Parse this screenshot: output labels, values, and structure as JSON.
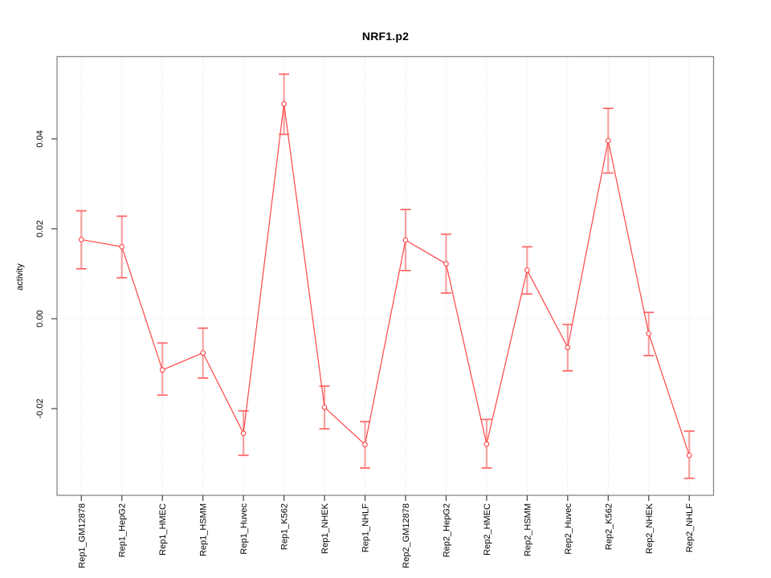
{
  "chart_data": {
    "type": "line",
    "title": "NRF1.p2",
    "xlabel": "",
    "ylabel": "activity",
    "categories": [
      "Rep1_GM12878",
      "Rep1_HepG2",
      "Rep1_HMEC",
      "Rep1_HSMM",
      "Rep1_Huvec",
      "Rep1_K562",
      "Rep1_NHEK",
      "Rep1_NHLF",
      "Rep2_GM12878",
      "Rep2_HepG2",
      "Rep2_HMEC",
      "Rep2_HSMM",
      "Rep2_Huvec",
      "Rep2_K562",
      "Rep2_NHEK",
      "Rep2_NHLF"
    ],
    "series": [
      {
        "name": "activity",
        "values": [
          0.0176,
          0.016,
          -0.0114,
          -0.0076,
          -0.0255,
          0.0478,
          -0.0197,
          -0.028,
          0.0175,
          0.0122,
          -0.0279,
          0.0108,
          -0.0064,
          0.0396,
          -0.0033,
          -0.0304
        ],
        "error_low": [
          0.0111,
          0.0091,
          -0.017,
          -0.0132,
          -0.0304,
          0.041,
          -0.0245,
          -0.0332,
          0.0107,
          0.0057,
          -0.0332,
          0.0055,
          -0.0116,
          0.0324,
          -0.0082,
          -0.0355
        ],
        "error_high": [
          0.024,
          0.0228,
          -0.0054,
          -0.0021,
          -0.0205,
          0.0544,
          -0.015,
          -0.0229,
          0.0243,
          0.0188,
          -0.0224,
          0.016,
          -0.0013,
          0.0468,
          0.0014,
          -0.025
        ]
      }
    ],
    "ylim": [
      -0.0393,
      0.0579
    ],
    "yticks": [
      -0.02,
      0.0,
      0.02,
      0.04
    ],
    "ytick_labels": [
      "-0.02",
      "0.00",
      "0.02",
      "0.04"
    ],
    "legend": "none",
    "grid_vertical_dotted": true,
    "zero_line_dotted": true,
    "colors": {
      "line": "#ff4545",
      "error_bar": "#f8a0a0",
      "error_cap": "#ff6b6b",
      "marker_stroke": "#ff4545",
      "marker_fill": "#ffffff",
      "box": "#878787",
      "tick": "#404040",
      "grid": "#d9d9d9",
      "zero_line": "#dcdcdc"
    }
  }
}
